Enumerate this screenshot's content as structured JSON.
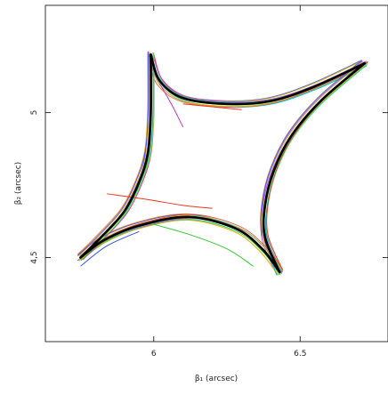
{
  "chart_data": {
    "type": "line",
    "xlabel": "β₁ (arcsec)",
    "ylabel": "β₂ (arcsec)",
    "xlim": [
      5.63,
      6.8
    ],
    "ylim": [
      4.21,
      5.37
    ],
    "x_ticks": [
      6,
      6.5
    ],
    "y_ticks": [
      4.5,
      5
    ],
    "x_tick_labels": [
      "6",
      "6.5"
    ],
    "y_tick_labels": [
      "4,5",
      "5"
    ],
    "grid": false,
    "legend": "none",
    "main_curve": {
      "color": "#000000",
      "segments": [
        {
          "name": "top-left cusp to top-right cusp",
          "points": [
            [
              5.99,
              5.2
            ],
            [
              6.02,
              5.11
            ],
            [
              6.1,
              5.05
            ],
            [
              6.25,
              5.03
            ],
            [
              6.4,
              5.04
            ],
            [
              6.55,
              5.09
            ],
            [
              6.72,
              5.17
            ]
          ]
        },
        {
          "name": "top-right cusp to bottom-right cusp",
          "points": [
            [
              6.72,
              5.17
            ],
            [
              6.57,
              5.04
            ],
            [
              6.47,
              4.92
            ],
            [
              6.41,
              4.8
            ],
            [
              6.38,
              4.68
            ],
            [
              6.38,
              4.57
            ],
            [
              6.43,
              4.45
            ]
          ]
        },
        {
          "name": "bottom-right cusp to bottom-left cusp",
          "points": [
            [
              6.43,
              4.45
            ],
            [
              6.37,
              4.53
            ],
            [
              6.28,
              4.6
            ],
            [
              6.12,
              4.64
            ],
            [
              5.95,
              4.61
            ],
            [
              5.83,
              4.56
            ],
            [
              5.75,
              4.5
            ]
          ]
        },
        {
          "name": "bottom-left cusp to top-left cusp",
          "points": [
            [
              5.75,
              4.5
            ],
            [
              5.82,
              4.57
            ],
            [
              5.9,
              4.66
            ],
            [
              5.95,
              4.76
            ],
            [
              5.98,
              4.86
            ],
            [
              5.99,
              5.0
            ],
            [
              5.99,
              5.2
            ]
          ]
        }
      ]
    },
    "colored_traces_palette": [
      "#00c8c8",
      "#33cc33",
      "#c8c800",
      "#cc33cc",
      "#3355ee",
      "#ee3322",
      "#ff9900",
      "#66ee66",
      "#9933ff",
      "#00bb99",
      "#eeaa00"
    ],
    "colored_traces": [
      {
        "color": "#ee3322",
        "points": [
          [
            5.84,
            4.72
          ],
          [
            5.98,
            4.7
          ],
          [
            6.1,
            4.68
          ],
          [
            6.2,
            4.67
          ]
        ]
      },
      {
        "color": "#cc33cc",
        "points": [
          [
            6.02,
            5.1
          ],
          [
            6.06,
            5.03
          ],
          [
            6.1,
            4.95
          ]
        ]
      },
      {
        "color": "#ee3322",
        "points": [
          [
            6.1,
            5.03
          ],
          [
            6.2,
            5.02
          ],
          [
            6.3,
            5.01
          ]
        ]
      },
      {
        "color": "#3355ee",
        "points": [
          [
            5.75,
            4.47
          ],
          [
            5.84,
            4.54
          ],
          [
            5.95,
            4.59
          ]
        ]
      },
      {
        "color": "#00c8c8",
        "points": [
          [
            6.38,
            4.6
          ],
          [
            6.4,
            4.5
          ],
          [
            6.42,
            4.44
          ]
        ]
      },
      {
        "color": "#33cc33",
        "points": [
          [
            5.98,
            4.62
          ],
          [
            6.12,
            4.58
          ],
          [
            6.25,
            4.53
          ],
          [
            6.34,
            4.47
          ]
        ]
      }
    ]
  }
}
